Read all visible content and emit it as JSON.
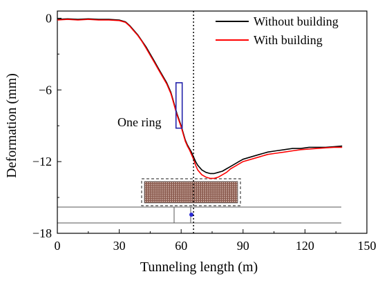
{
  "chart_data": {
    "type": "line",
    "xlabel": "Tunneling length (m)",
    "ylabel": "Deformation (mm)",
    "xlim": [
      0,
      150
    ],
    "ylim": [
      -18,
      0.6
    ],
    "xticks": [
      0,
      30,
      60,
      90,
      120,
      150
    ],
    "yticks": [
      0,
      -6,
      -12,
      -18
    ],
    "grid": false,
    "legend_position": "top-right",
    "annotations": [
      {
        "text": "One ring"
      }
    ],
    "series": [
      {
        "name": "Without building",
        "color": "#000000",
        "x": [
          0,
          5,
          10,
          15,
          20,
          25,
          30,
          33,
          35,
          37,
          39,
          41,
          43,
          45,
          47,
          49,
          51,
          53,
          55,
          56,
          57,
          58,
          59,
          60,
          61,
          62,
          63,
          64,
          65,
          66,
          67,
          68,
          70,
          72,
          74,
          76,
          78,
          80,
          82,
          84,
          86,
          88,
          90,
          94,
          98,
          102,
          106,
          110,
          114,
          118,
          122,
          126,
          130,
          134,
          138
        ],
        "y": [
          -0.1,
          -0.05,
          -0.1,
          -0.05,
          -0.1,
          -0.1,
          -0.15,
          -0.3,
          -0.6,
          -1.0,
          -1.4,
          -1.9,
          -2.4,
          -3.0,
          -3.6,
          -4.2,
          -4.8,
          -5.4,
          -6.2,
          -6.8,
          -7.4,
          -8.0,
          -8.5,
          -9.0,
          -9.6,
          -10.2,
          -10.6,
          -10.9,
          -11.2,
          -11.6,
          -12.0,
          -12.3,
          -12.7,
          -12.9,
          -13.0,
          -13.0,
          -12.9,
          -12.8,
          -12.6,
          -12.4,
          -12.2,
          -12.0,
          -11.8,
          -11.6,
          -11.4,
          -11.2,
          -11.1,
          -11.0,
          -10.9,
          -10.9,
          -10.8,
          -10.8,
          -10.8,
          -10.75,
          -10.7
        ]
      },
      {
        "name": "With building",
        "color": "#ff0000",
        "x": [
          0,
          5,
          10,
          15,
          20,
          25,
          30,
          33,
          35,
          37,
          39,
          41,
          43,
          45,
          47,
          49,
          51,
          53,
          55,
          56,
          57,
          58,
          59,
          60,
          61,
          62,
          63,
          64,
          65,
          66,
          67,
          68,
          70,
          72,
          74,
          76,
          78,
          80,
          82,
          84,
          86,
          88,
          90,
          94,
          98,
          102,
          106,
          110,
          114,
          118,
          122,
          126,
          130,
          134,
          138
        ],
        "y": [
          -0.15,
          -0.1,
          -0.15,
          -0.1,
          -0.15,
          -0.15,
          -0.2,
          -0.35,
          -0.65,
          -1.05,
          -1.45,
          -1.95,
          -2.5,
          -3.1,
          -3.7,
          -4.3,
          -4.9,
          -5.5,
          -6.3,
          -6.9,
          -7.5,
          -8.1,
          -8.6,
          -9.1,
          -9.7,
          -10.3,
          -10.7,
          -11.0,
          -11.4,
          -11.8,
          -12.3,
          -12.7,
          -13.1,
          -13.3,
          -13.4,
          -13.4,
          -13.3,
          -13.1,
          -12.9,
          -12.6,
          -12.4,
          -12.2,
          -12.0,
          -11.8,
          -11.6,
          -11.4,
          -11.3,
          -11.2,
          -11.1,
          -11.0,
          -10.95,
          -10.9,
          -10.85,
          -10.8,
          -10.8
        ]
      }
    ]
  }
}
